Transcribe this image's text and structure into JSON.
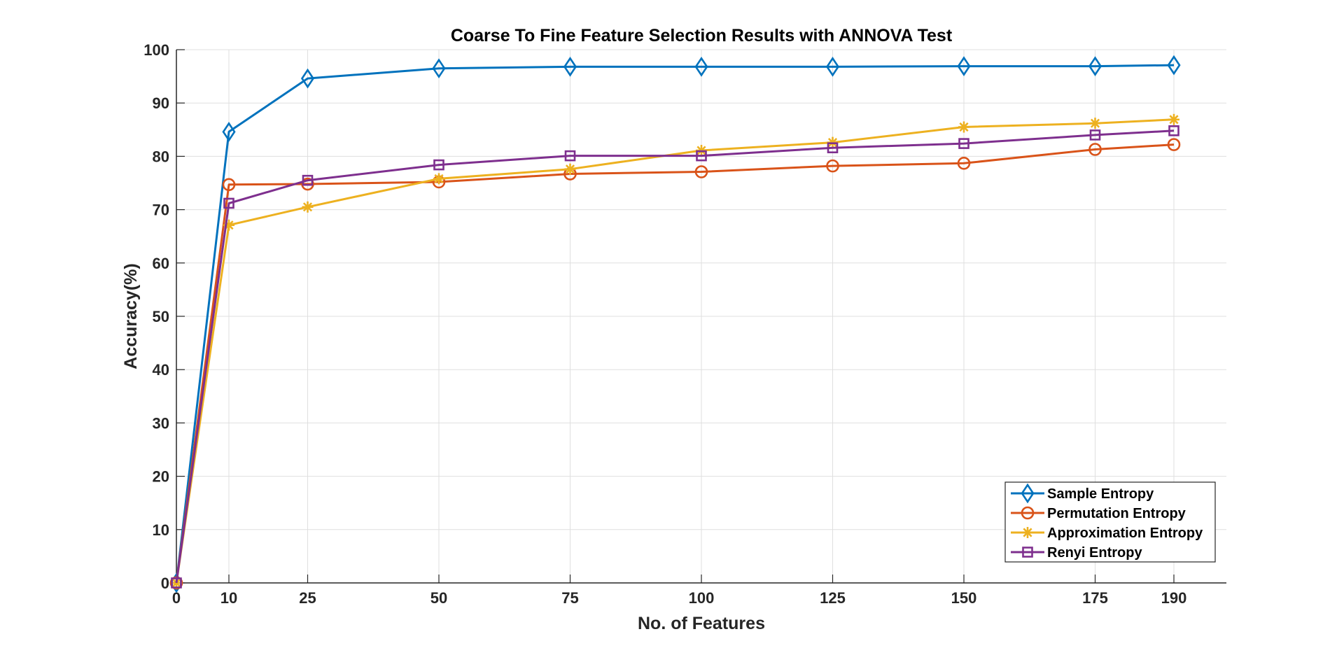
{
  "chart_data": {
    "type": "line",
    "title": "Coarse To Fine Feature Selection Results with ANNOVA Test",
    "xlabel": "No. of Features",
    "ylabel": "Accuracy(%)",
    "x": [
      0,
      10,
      25,
      50,
      75,
      100,
      125,
      150,
      175,
      190
    ],
    "x_ticks": [
      0,
      10,
      25,
      50,
      75,
      100,
      125,
      150,
      175,
      190
    ],
    "xlim": [
      0,
      200
    ],
    "ylim": [
      0,
      100
    ],
    "y_ticks": [
      0,
      10,
      20,
      30,
      40,
      50,
      60,
      70,
      80,
      90,
      100
    ],
    "grid": true,
    "legend_position": "bottom-right",
    "series": [
      {
        "name": "Sample Entropy",
        "color": "#0072BD",
        "marker": "diamond",
        "values": [
          0,
          84.6,
          94.6,
          96.5,
          96.8,
          96.8,
          96.8,
          96.9,
          96.9,
          97.1
        ]
      },
      {
        "name": "Permutation Entropy",
        "color": "#D95319",
        "marker": "circle",
        "values": [
          0,
          74.7,
          74.8,
          75.2,
          76.7,
          77.1,
          78.2,
          78.7,
          81.3,
          82.2
        ]
      },
      {
        "name": "Approximation Entropy",
        "color": "#EDB120",
        "marker": "asterisk",
        "values": [
          0,
          67.1,
          70.5,
          75.8,
          77.6,
          81.1,
          82.6,
          85.5,
          86.2,
          86.9
        ]
      },
      {
        "name": "Renyi Entropy",
        "color": "#7E2F8E",
        "marker": "square",
        "values": [
          0,
          71.2,
          75.5,
          78.4,
          80.1,
          80.1,
          81.6,
          82.4,
          84.0,
          84.8
        ]
      }
    ]
  }
}
